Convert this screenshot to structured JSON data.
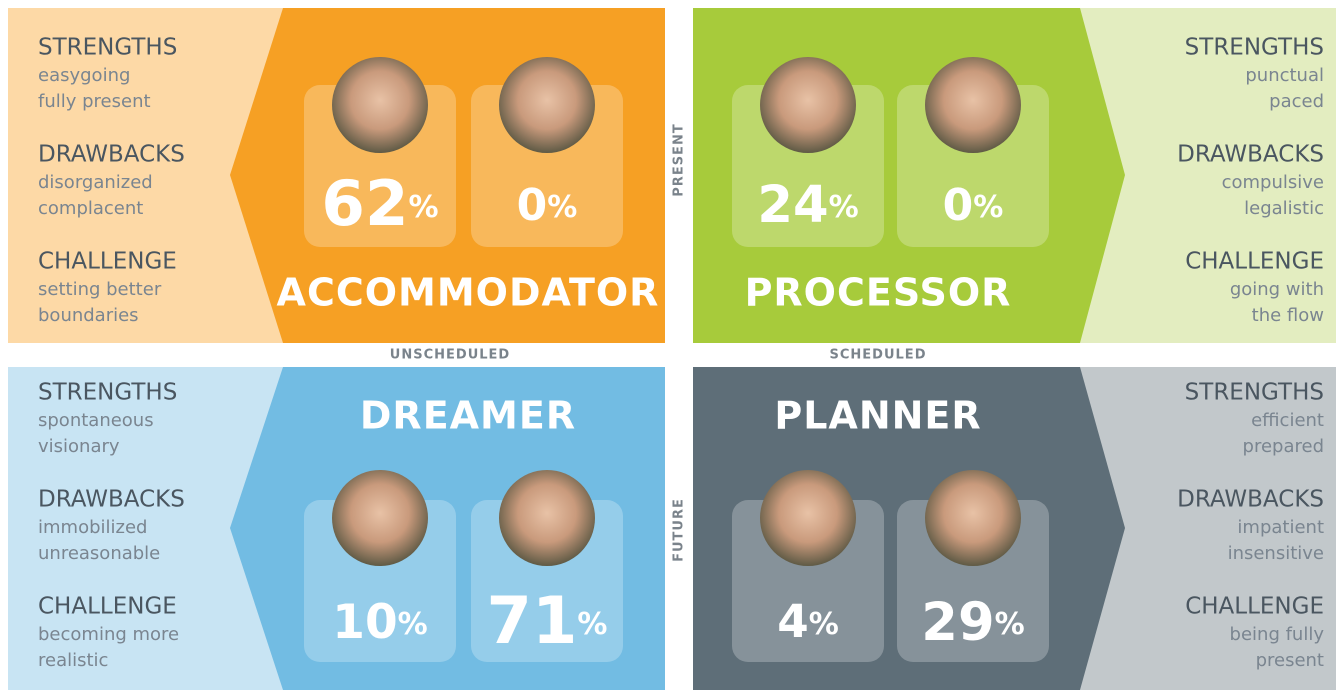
{
  "axes": {
    "top": "PRESENT",
    "bottom": "FUTURE",
    "left": "UNSCHEDULED",
    "right": "SCHEDULED"
  },
  "quadrants": [
    {
      "title": "ACCOMMODATOR",
      "people": [
        {
          "value": 62,
          "unit": "%"
        },
        {
          "value": 0,
          "unit": "%"
        }
      ],
      "traits": [
        {
          "heading": "STRENGTHS",
          "items": [
            "easygoing",
            "fully present"
          ]
        },
        {
          "heading": "DRAWBACKS",
          "items": [
            "disorganized",
            "complacent"
          ]
        },
        {
          "heading": "CHALLENGE",
          "items": [
            "setting better",
            "boundaries"
          ]
        }
      ]
    },
    {
      "title": "PROCESSOR",
      "people": [
        {
          "value": 24,
          "unit": "%"
        },
        {
          "value": 0,
          "unit": "%"
        }
      ],
      "traits": [
        {
          "heading": "STRENGTHS",
          "items": [
            "punctual",
            "paced"
          ]
        },
        {
          "heading": "DRAWBACKS",
          "items": [
            "compulsive",
            "legalistic"
          ]
        },
        {
          "heading": "CHALLENGE",
          "items": [
            "going with",
            "the flow"
          ]
        }
      ]
    },
    {
      "title": "DREAMER",
      "people": [
        {
          "value": 10,
          "unit": "%"
        },
        {
          "value": 71,
          "unit": "%"
        }
      ],
      "traits": [
        {
          "heading": "STRENGTHS",
          "items": [
            "spontaneous",
            "visionary"
          ]
        },
        {
          "heading": "DRAWBACKS",
          "items": [
            "immobilized",
            "unreasonable"
          ]
        },
        {
          "heading": "CHALLENGE",
          "items": [
            "becoming more",
            "realistic"
          ]
        }
      ]
    },
    {
      "title": "PLANNER",
      "people": [
        {
          "value": 4,
          "unit": "%"
        },
        {
          "value": 29,
          "unit": "%"
        }
      ],
      "traits": [
        {
          "heading": "STRENGTHS",
          "items": [
            "efficient",
            "prepared"
          ]
        },
        {
          "heading": "DRAWBACKS",
          "items": [
            "impatient",
            "insensitive"
          ]
        },
        {
          "heading": "CHALLENGE",
          "items": [
            "being fully",
            "present"
          ]
        }
      ]
    }
  ]
}
